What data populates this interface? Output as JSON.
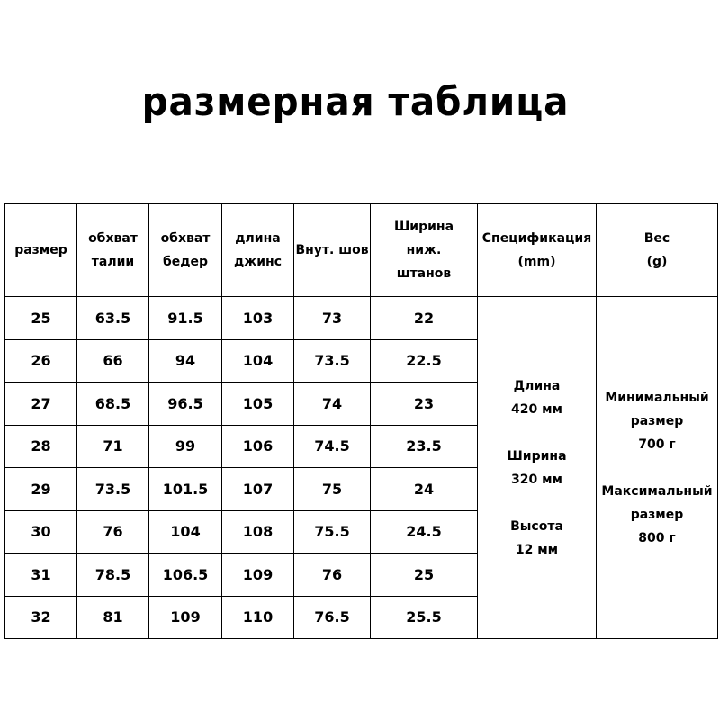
{
  "title": "размерная таблица",
  "headers": [
    [
      "размер"
    ],
    [
      "обхват",
      "талии"
    ],
    [
      "обхват",
      "бедер"
    ],
    [
      "длина",
      "джинс"
    ],
    [
      "Внут. шов"
    ],
    [
      "Ширина",
      "ниж.",
      "штанов"
    ],
    [
      "Спецификация",
      "(mm)"
    ],
    [
      "Вес",
      "(g)"
    ]
  ],
  "rows": [
    [
      "25",
      "63.5",
      "91.5",
      "103",
      "73",
      "22"
    ],
    [
      "26",
      "66",
      "94",
      "104",
      "73.5",
      "22.5"
    ],
    [
      "27",
      "68.5",
      "96.5",
      "105",
      "74",
      "23"
    ],
    [
      "28",
      "71",
      "99",
      "106",
      "74.5",
      "23.5"
    ],
    [
      "29",
      "73.5",
      "101.5",
      "107",
      "75",
      "24"
    ],
    [
      "30",
      "76",
      "104",
      "108",
      "75.5",
      "24.5"
    ],
    [
      "31",
      "78.5",
      "106.5",
      "109",
      "76",
      "25"
    ],
    [
      "32",
      "81",
      "109",
      "110",
      "76.5",
      "25.5"
    ]
  ],
  "spec": {
    "length_label": "Длина",
    "length_value": "420 мм",
    "width_label": "Ширина",
    "width_value": "320 мм",
    "height_label": "Высота",
    "height_value": "12 мм"
  },
  "weight": {
    "min_label1": "Минимальный",
    "min_label2": "размер",
    "min_value": "700 г",
    "max_label1": "Максимальный",
    "max_label2": "размер",
    "max_value": "800 г"
  }
}
